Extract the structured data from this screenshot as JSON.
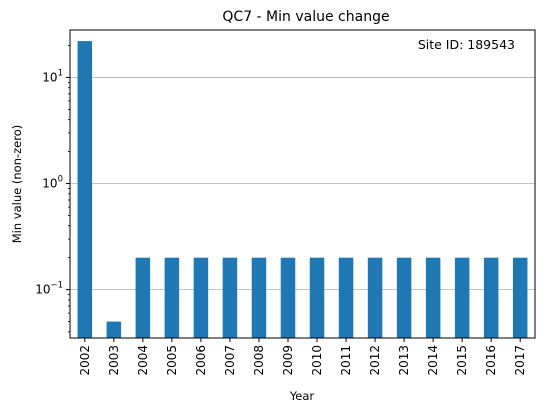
{
  "chart_data": {
    "type": "bar",
    "title": "QC7 - Min value change",
    "xlabel": "Year",
    "ylabel": "Min value (non-zero)",
    "yscale": "log",
    "ylim": [
      0.035,
      28
    ],
    "categories": [
      "2002",
      "2003",
      "2004",
      "2005",
      "2006",
      "2007",
      "2008",
      "2009",
      "2010",
      "2011",
      "2012",
      "2013",
      "2014",
      "2015",
      "2016",
      "2017"
    ],
    "values": [
      22,
      0.05,
      0.2,
      0.2,
      0.2,
      0.2,
      0.2,
      0.2,
      0.2,
      0.2,
      0.2,
      0.2,
      0.2,
      0.2,
      0.2,
      0.2
    ],
    "y_ticks": [
      {
        "value": 0.1,
        "base": "10",
        "exp": "−1"
      },
      {
        "value": 1,
        "base": "10",
        "exp": "0"
      },
      {
        "value": 10,
        "base": "10",
        "exp": "1"
      }
    ],
    "grid": {
      "y": true,
      "x": false
    },
    "bar_color": "#1f77b4",
    "annotation": {
      "text": "Site ID: 189543",
      "color": "#808080",
      "placement": "top-right"
    }
  }
}
